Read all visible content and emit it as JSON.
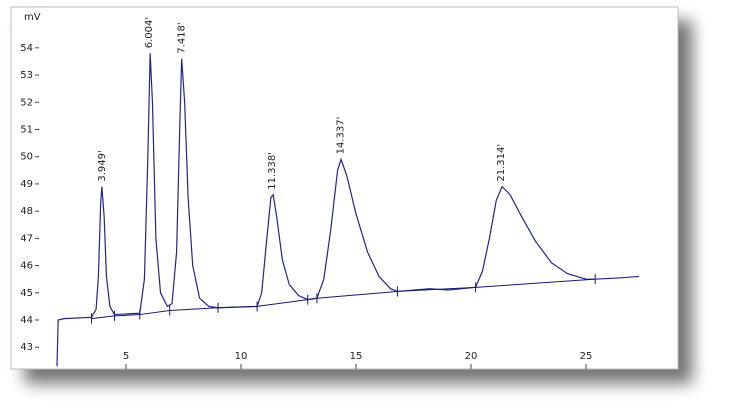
{
  "chart_data": {
    "type": "line",
    "y_label": "mV",
    "color": "#23238e",
    "baseline_color": "#1a1a66",
    "xlim": [
      0,
      29
    ],
    "ylim": [
      42.2,
      55.5
    ],
    "xticks": [
      5,
      10,
      15,
      20,
      25
    ],
    "yticks": [
      43,
      44,
      45,
      46,
      47,
      48,
      49,
      50,
      51,
      52,
      53,
      54
    ],
    "x": [
      2.0,
      2.05,
      2.3,
      3.5,
      3.7,
      3.8,
      3.9,
      3.95,
      4.05,
      4.15,
      4.3,
      4.5,
      5.6,
      5.8,
      5.95,
      6.05,
      6.15,
      6.3,
      6.5,
      6.8,
      7.0,
      7.2,
      7.35,
      7.42,
      7.55,
      7.7,
      7.9,
      8.2,
      8.6,
      9,
      10.7,
      10.9,
      11.1,
      11.3,
      11.4,
      11.55,
      11.8,
      12.1,
      12.5,
      12.9,
      13.3,
      13.6,
      13.9,
      14.2,
      14.35,
      14.6,
      15.0,
      15.5,
      16.0,
      16.5,
      16.8,
      17.5,
      18.2,
      19.0,
      20.2,
      20.5,
      20.8,
      21.1,
      21.35,
      21.7,
      22.2,
      22.8,
      23.5,
      24.2,
      25.0,
      25.4,
      26.5,
      27.3
    ],
    "values": [
      42.3,
      44.0,
      44.05,
      44.1,
      44.4,
      45.6,
      48.3,
      48.9,
      47.8,
      45.6,
      44.5,
      44.2,
      44.25,
      45.5,
      50,
      53.8,
      52,
      47,
      45,
      44.5,
      44.6,
      46.5,
      51.5,
      53.6,
      52,
      48.5,
      46,
      44.8,
      44.5,
      44.45,
      44.5,
      45,
      46.8,
      48.5,
      48.6,
      47.8,
      46.2,
      45.3,
      44.9,
      44.75,
      44.8,
      45.5,
      47.3,
      49.5,
      49.9,
      49.3,
      47.9,
      46.5,
      45.6,
      45.15,
      45.05,
      45.1,
      45.15,
      45.1,
      45.2,
      45.8,
      47,
      48.4,
      48.9,
      48.6,
      47.8,
      46.9,
      46.1,
      45.7,
      45.5,
      45.5,
      45.55,
      45.6
    ],
    "baseline": {
      "x": [
        3.5,
        4.5,
        5.6,
        6.9,
        9,
        10.7,
        12.9,
        13.3,
        16.8,
        20.2,
        25.4
      ],
      "values": [
        44.05,
        44.15,
        44.2,
        44.35,
        44.45,
        44.5,
        44.75,
        44.8,
        45.05,
        45.2,
        45.5
      ]
    },
    "peaks": [
      {
        "label": "3.949'",
        "x": 3.949,
        "y": 48.9
      },
      {
        "label": "6.004'",
        "x": 6.004,
        "y": 53.8
      },
      {
        "label": "7.418'",
        "x": 7.418,
        "y": 53.6
      },
      {
        "label": "11.338'",
        "x": 11.338,
        "y": 48.6
      },
      {
        "label": "14.337'",
        "x": 14.337,
        "y": 49.9
      },
      {
        "label": "21.314'",
        "x": 21.314,
        "y": 48.9
      }
    ]
  }
}
